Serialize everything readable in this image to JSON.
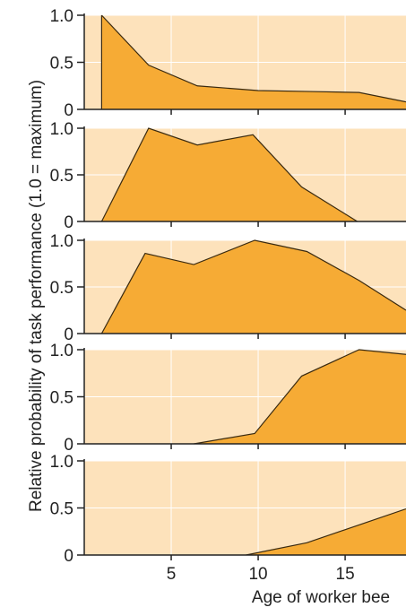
{
  "chart_data": [
    {
      "type": "area",
      "x": [
        1,
        3.7,
        6.5,
        10,
        13,
        15.8,
        18.5
      ],
      "y": [
        1.0,
        0.47,
        0.25,
        0.2,
        0.19,
        0.18,
        0.08
      ]
    },
    {
      "type": "area",
      "x": [
        1,
        3.7,
        6.5,
        9.7,
        12.5,
        15.7
      ],
      "y": [
        0,
        1.0,
        0.82,
        0.93,
        0.37,
        0
      ]
    },
    {
      "type": "area",
      "x": [
        1,
        3.5,
        6.3,
        9.8,
        12.8,
        15.8,
        18.5
      ],
      "y": [
        0,
        0.86,
        0.74,
        1.0,
        0.88,
        0.57,
        0.25
      ]
    },
    {
      "type": "area",
      "x": [
        6.3,
        9.8,
        12.5,
        15.8,
        18.5
      ],
      "y": [
        0,
        0.11,
        0.72,
        1.0,
        0.95
      ]
    },
    {
      "type": "area",
      "x": [
        9.3,
        12.8,
        15.8,
        18.5
      ],
      "y": [
        0,
        0.13,
        0.32,
        0.49
      ]
    }
  ],
  "axes": {
    "ylabel": "Relative probability of task performance (1.0 = maximum)",
    "xlabel": "Age of worker bee",
    "y_tick_labels": [
      "1.0",
      "0.5",
      "0"
    ],
    "x_ticks": [
      {
        "value": 5,
        "label": "5"
      },
      {
        "value": 10,
        "label": "10"
      },
      {
        "value": 15,
        "label": "15"
      }
    ],
    "xlim": [
      0,
      18.5
    ],
    "ylim": [
      0,
      1.0
    ]
  },
  "colors": {
    "panel_bg": "#fde2bb",
    "fill": "#f6ab35",
    "line": "#3a2a10",
    "grid": "#ffffff"
  }
}
